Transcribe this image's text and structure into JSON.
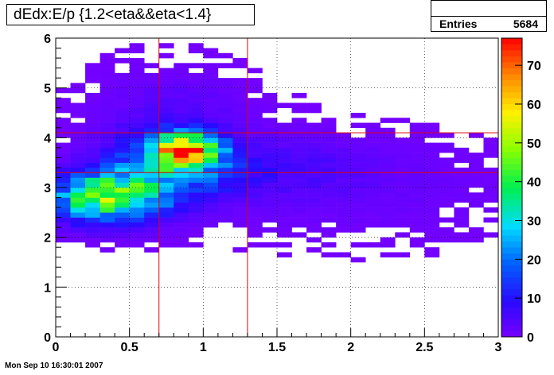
{
  "title": "dEdx:E/p {1.2<eta&&eta<1.4}",
  "stats": {
    "label": "Entries",
    "value": "5684"
  },
  "footer": "Mon Sep 10 16:30:01 2007",
  "chart_data": {
    "type": "heatmap",
    "xlim": [
      0,
      3
    ],
    "ylim": [
      0,
      6
    ],
    "x_ticks": [
      "0",
      "0.5",
      "1",
      "1.5",
      "2",
      "2.5",
      "3"
    ],
    "y_ticks": [
      "0",
      "1",
      "2",
      "3",
      "4",
      "5",
      "6"
    ],
    "z_ticks": [
      "0",
      "10",
      "20",
      "30",
      "40",
      "50",
      "60",
      "70"
    ],
    "zlim": [
      0,
      77
    ],
    "grid": true,
    "cut_lines": {
      "x": [
        0.7,
        1.3
      ],
      "y": [
        3.3,
        4.1
      ]
    },
    "bins": {
      "nx": 30,
      "ny": 60
    },
    "cores": [
      {
        "x": 0.35,
        "y": 2.8,
        "sx": 0.24,
        "sy": 0.32,
        "amp": 46
      },
      {
        "x": 0.88,
        "y": 3.75,
        "sx": 0.14,
        "sy": 0.22,
        "amp": 70
      },
      {
        "x": 0.75,
        "y": 3.4,
        "sx": 0.28,
        "sy": 0.45,
        "amp": 22
      },
      {
        "x": 1.4,
        "y": 3.4,
        "sx": 0.5,
        "sy": 0.4,
        "amp": 5
      },
      {
        "x": 2.0,
        "y": 3.0,
        "sx": 0.8,
        "sy": 0.7,
        "amp": 1.8
      },
      {
        "x": 0.8,
        "y": 4.5,
        "sx": 0.35,
        "sy": 0.6,
        "amp": 3.5
      }
    ]
  }
}
